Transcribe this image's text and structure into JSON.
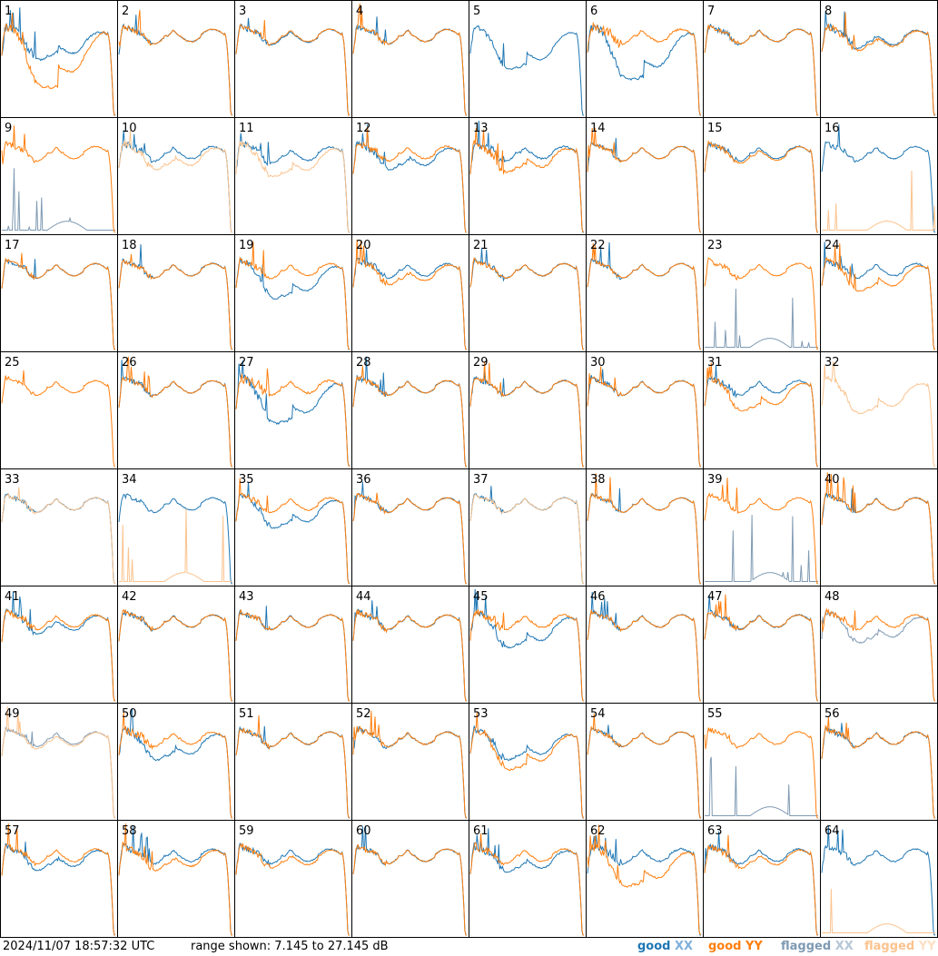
{
  "chart_data": {
    "type": "line",
    "grid": {
      "rows": 8,
      "cols": 8
    },
    "x_domain": [
      0,
      1
    ],
    "y_range_db": [
      7.145,
      27.145
    ],
    "colors": {
      "good_xx": "#1f77b4",
      "good_yy": "#ff7f0e",
      "flagged_xx": "#7f9ab3",
      "flagged_yy": "#fcc38e"
    },
    "panels": [
      {
        "label": "1",
        "xx": "good",
        "yy": "good",
        "xx_dip": 0.35,
        "yy_dip": 0.9,
        "xx_mid": 0.0,
        "yy_mid": 0.0,
        "noise": 0.9
      },
      {
        "label": "2",
        "xx": "good",
        "yy": "good",
        "xx_dip": 0.0,
        "yy_dip": 0.0,
        "xx_mid": 0.0,
        "yy_mid": 0.0,
        "noise": 0.5
      },
      {
        "label": "3",
        "xx": "good",
        "yy": "good",
        "xx_dip": 0.02,
        "yy_dip": 0.0,
        "xx_mid": 0.0,
        "yy_mid": 0.0,
        "noise": 0.5
      },
      {
        "label": "4",
        "xx": "good",
        "yy": "good",
        "xx_dip": 0.0,
        "yy_dip": 0.0,
        "xx_mid": 0.0,
        "yy_mid": 0.0,
        "noise": 0.5
      },
      {
        "label": "5",
        "xx": "good",
        "yy": "missing",
        "xx_dip": 0.55,
        "yy_dip": 0.0,
        "xx_mid": 0.0,
        "yy_mid": 0.0,
        "noise": 0.5
      },
      {
        "label": "6",
        "xx": "good",
        "yy": "good",
        "xx_dip": 0.75,
        "yy_dip": 0.0,
        "xx_mid": 0.4,
        "yy_mid": 0.0,
        "noise": 0.9
      },
      {
        "label": "7",
        "xx": "good",
        "yy": "good",
        "xx_dip": 0.0,
        "yy_dip": 0.0,
        "xx_mid": 0.0,
        "yy_mid": 0.0,
        "noise": 0.5
      },
      {
        "label": "8",
        "xx": "good",
        "yy": "good",
        "xx_dip": 0.1,
        "yy_dip": 0.15,
        "xx_mid": 0.0,
        "yy_mid": 0.0,
        "noise": 0.8
      },
      {
        "label": "9",
        "xx": "flagged_low",
        "yy": "good",
        "xx_dip": 0.0,
        "yy_dip": 0.0,
        "xx_mid": 0.0,
        "yy_mid": 0.0,
        "noise": 0.5
      },
      {
        "label": "10",
        "xx": "good",
        "yy": "flagged",
        "xx_dip": 0.0,
        "yy_dip": 0.2,
        "xx_mid": 0.0,
        "yy_mid": 0.0,
        "noise": 0.7
      },
      {
        "label": "11",
        "xx": "good",
        "yy": "flagged",
        "xx_dip": 0.05,
        "yy_dip": 0.35,
        "xx_mid": 0.0,
        "yy_mid": 0.0,
        "noise": 0.7
      },
      {
        "label": "12",
        "xx": "good",
        "yy": "good",
        "xx_dip": 0.2,
        "yy_dip": 0.0,
        "xx_mid": 0.0,
        "yy_mid": 0.0,
        "noise": 0.7
      },
      {
        "label": "13",
        "xx": "good",
        "yy": "good",
        "xx_dip": 0.0,
        "yy_dip": 0.25,
        "xx_mid": 0.0,
        "yy_mid": 0.0,
        "noise": 0.9
      },
      {
        "label": "14",
        "xx": "good",
        "yy": "good",
        "xx_dip": 0.0,
        "yy_dip": 0.0,
        "xx_mid": 0.0,
        "yy_mid": 0.0,
        "noise": 0.4
      },
      {
        "label": "15",
        "xx": "good",
        "yy": "good",
        "xx_dip": 0.0,
        "yy_dip": 0.05,
        "xx_mid": 0.0,
        "yy_mid": 0.0,
        "noise": 0.5
      },
      {
        "label": "16",
        "xx": "good",
        "yy": "flagged_low",
        "xx_dip": 0.0,
        "yy_dip": 0.0,
        "xx_mid": 0.0,
        "yy_mid": 0.0,
        "noise": 0.5
      },
      {
        "label": "17",
        "xx": "good",
        "yy": "good",
        "xx_dip": 0.0,
        "yy_dip": 0.0,
        "xx_mid": 0.0,
        "yy_mid": 0.0,
        "noise": 0.4
      },
      {
        "label": "18",
        "xx": "good",
        "yy": "good",
        "xx_dip": 0.0,
        "yy_dip": 0.0,
        "xx_mid": 0.0,
        "yy_mid": 0.0,
        "noise": 0.5
      },
      {
        "label": "19",
        "xx": "good",
        "yy": "good",
        "xx_dip": 0.45,
        "yy_dip": 0.0,
        "xx_mid": 0.0,
        "yy_mid": 0.0,
        "noise": 0.6
      },
      {
        "label": "20",
        "xx": "good",
        "yy": "good",
        "xx_dip": 0.0,
        "yy_dip": 0.15,
        "xx_mid": 0.0,
        "yy_mid": 0.0,
        "noise": 0.7
      },
      {
        "label": "21",
        "xx": "good",
        "yy": "good",
        "xx_dip": 0.0,
        "yy_dip": 0.0,
        "xx_mid": 0.0,
        "yy_mid": 0.0,
        "noise": 0.5
      },
      {
        "label": "22",
        "xx": "good",
        "yy": "good",
        "xx_dip": 0.0,
        "yy_dip": 0.0,
        "xx_mid": 0.0,
        "yy_mid": 0.0,
        "noise": 0.4
      },
      {
        "label": "23",
        "xx": "flagged_low",
        "yy": "good",
        "xx_dip": 0.0,
        "yy_dip": 0.0,
        "xx_mid": 0.0,
        "yy_mid": 0.0,
        "noise": 0.5
      },
      {
        "label": "24",
        "xx": "good",
        "yy": "good",
        "xx_dip": 0.0,
        "yy_dip": 0.3,
        "xx_mid": 0.0,
        "yy_mid": 0.0,
        "noise": 0.6
      },
      {
        "label": "25",
        "xx": "missing",
        "yy": "good",
        "xx_dip": 0.0,
        "yy_dip": 0.0,
        "xx_mid": 0.0,
        "yy_mid": 0.0,
        "noise": 0.4
      },
      {
        "label": "26",
        "xx": "good",
        "yy": "good",
        "xx_dip": 0.0,
        "yy_dip": 0.0,
        "xx_mid": 0.0,
        "yy_mid": 0.0,
        "noise": 0.5
      },
      {
        "label": "27",
        "xx": "good",
        "yy": "good",
        "xx_dip": 0.6,
        "yy_dip": 0.0,
        "xx_mid": 0.0,
        "yy_mid": 0.0,
        "noise": 1.0
      },
      {
        "label": "28",
        "xx": "good",
        "yy": "good",
        "xx_dip": 0.0,
        "yy_dip": 0.0,
        "xx_mid": 0.0,
        "yy_mid": 0.0,
        "noise": 0.5
      },
      {
        "label": "29",
        "xx": "good",
        "yy": "good",
        "xx_dip": 0.0,
        "yy_dip": 0.0,
        "xx_mid": 0.0,
        "yy_mid": 0.0,
        "noise": 0.5
      },
      {
        "label": "30",
        "xx": "good",
        "yy": "good",
        "xx_dip": 0.0,
        "yy_dip": 0.0,
        "xx_mid": 0.0,
        "yy_mid": 0.0,
        "noise": 0.5
      },
      {
        "label": "31",
        "xx": "good",
        "yy": "good",
        "xx_dip": 0.0,
        "yy_dip": 0.35,
        "xx_mid": 0.0,
        "yy_mid": 0.0,
        "noise": 0.6
      },
      {
        "label": "32",
        "xx": "missing",
        "yy": "flagged",
        "xx_dip": 0.0,
        "yy_dip": 0.4,
        "xx_mid": 0.0,
        "yy_mid": 0.0,
        "noise": 0.6
      },
      {
        "label": "33",
        "xx": "good",
        "yy": "flagged",
        "xx_dip": 0.0,
        "yy_dip": 0.0,
        "xx_mid": 0.0,
        "yy_mid": 0.0,
        "noise": 0.4
      },
      {
        "label": "34",
        "xx": "good",
        "yy": "flagged_low",
        "xx_dip": 0.0,
        "yy_dip": 0.0,
        "xx_mid": 0.0,
        "yy_mid": 0.0,
        "noise": 0.5
      },
      {
        "label": "35",
        "xx": "good",
        "yy": "good",
        "xx_dip": 0.35,
        "yy_dip": 0.0,
        "xx_mid": 0.0,
        "yy_mid": 0.0,
        "noise": 0.6
      },
      {
        "label": "36",
        "xx": "good",
        "yy": "good",
        "xx_dip": 0.0,
        "yy_dip": 0.0,
        "xx_mid": 0.0,
        "yy_mid": 0.0,
        "noise": 0.5
      },
      {
        "label": "37",
        "xx": "good",
        "yy": "flagged",
        "xx_dip": 0.0,
        "yy_dip": 0.0,
        "xx_mid": 0.0,
        "yy_mid": 0.0,
        "noise": 0.4
      },
      {
        "label": "38",
        "xx": "good",
        "yy": "good",
        "xx_dip": 0.0,
        "yy_dip": 0.0,
        "xx_mid": 0.0,
        "yy_mid": 0.0,
        "noise": 0.4
      },
      {
        "label": "39",
        "xx": "flagged_low",
        "yy": "good",
        "xx_dip": 0.0,
        "yy_dip": 0.0,
        "xx_mid": 0.0,
        "yy_mid": 0.0,
        "noise": 0.4
      },
      {
        "label": "40",
        "xx": "good",
        "yy": "good",
        "xx_dip": 0.0,
        "yy_dip": 0.0,
        "xx_mid": 0.0,
        "yy_mid": 0.0,
        "noise": 0.5
      },
      {
        "label": "41",
        "xx": "good",
        "yy": "good",
        "xx_dip": 0.1,
        "yy_dip": 0.0,
        "xx_mid": 0.0,
        "yy_mid": 0.0,
        "noise": 0.6
      },
      {
        "label": "42",
        "xx": "good",
        "yy": "good",
        "xx_dip": 0.0,
        "yy_dip": 0.0,
        "xx_mid": 0.0,
        "yy_mid": 0.0,
        "noise": 0.5
      },
      {
        "label": "43",
        "xx": "good",
        "yy": "good",
        "xx_dip": 0.0,
        "yy_dip": 0.0,
        "xx_mid": 0.0,
        "yy_mid": 0.0,
        "noise": 0.5
      },
      {
        "label": "44",
        "xx": "good",
        "yy": "good",
        "xx_dip": 0.0,
        "yy_dip": 0.0,
        "xx_mid": 0.0,
        "yy_mid": 0.0,
        "noise": 0.6
      },
      {
        "label": "45",
        "xx": "good",
        "yy": "good",
        "xx_dip": 0.4,
        "yy_dip": 0.0,
        "xx_mid": 0.0,
        "yy_mid": 0.0,
        "noise": 0.8
      },
      {
        "label": "46",
        "xx": "good",
        "yy": "good",
        "xx_dip": 0.0,
        "yy_dip": 0.0,
        "xx_mid": 0.0,
        "yy_mid": 0.0,
        "noise": 0.5
      },
      {
        "label": "47",
        "xx": "good",
        "yy": "good",
        "xx_dip": 0.0,
        "yy_dip": 0.0,
        "xx_mid": 0.0,
        "yy_mid": 0.0,
        "noise": 0.6
      },
      {
        "label": "48",
        "xx": "flagged",
        "yy": "good",
        "xx_dip": 0.3,
        "yy_dip": 0.0,
        "xx_mid": 0.0,
        "yy_mid": 0.0,
        "noise": 0.6
      },
      {
        "label": "49",
        "xx": "flagged",
        "yy": "flagged",
        "xx_dip": 0.0,
        "yy_dip": 0.05,
        "xx_mid": 0.0,
        "yy_mid": 0.0,
        "noise": 0.4
      },
      {
        "label": "50",
        "xx": "good",
        "yy": "good",
        "xx_dip": 0.3,
        "yy_dip": 0.0,
        "xx_mid": 0.0,
        "yy_mid": 0.0,
        "noise": 0.7
      },
      {
        "label": "51",
        "xx": "good",
        "yy": "good",
        "xx_dip": 0.0,
        "yy_dip": 0.0,
        "xx_mid": 0.0,
        "yy_mid": 0.0,
        "noise": 0.5
      },
      {
        "label": "52",
        "xx": "good",
        "yy": "good",
        "xx_dip": 0.0,
        "yy_dip": 0.0,
        "xx_mid": 0.0,
        "yy_mid": 0.0,
        "noise": 0.6
      },
      {
        "label": "53",
        "xx": "good",
        "yy": "good",
        "xx_dip": 0.3,
        "yy_dip": 0.5,
        "xx_mid": 0.0,
        "yy_mid": 0.0,
        "noise": 0.8
      },
      {
        "label": "54",
        "xx": "good",
        "yy": "good",
        "xx_dip": 0.0,
        "yy_dip": 0.0,
        "xx_mid": 0.0,
        "yy_mid": 0.0,
        "noise": 0.4
      },
      {
        "label": "55",
        "xx": "flagged_low",
        "yy": "good",
        "xx_dip": 0.0,
        "yy_dip": 0.0,
        "xx_mid": 0.0,
        "yy_mid": 0.0,
        "noise": 0.5
      },
      {
        "label": "56",
        "xx": "good",
        "yy": "good",
        "xx_dip": 0.0,
        "yy_dip": 0.0,
        "xx_mid": 0.0,
        "yy_mid": 0.0,
        "noise": 0.6
      },
      {
        "label": "57",
        "xx": "good",
        "yy": "good",
        "xx_dip": 0.15,
        "yy_dip": 0.0,
        "xx_mid": 0.0,
        "yy_mid": 0.0,
        "noise": 0.6
      },
      {
        "label": "58",
        "xx": "good",
        "yy": "good",
        "xx_dip": 0.0,
        "yy_dip": 0.15,
        "xx_mid": 0.0,
        "yy_mid": 0.0,
        "noise": 0.7
      },
      {
        "label": "59",
        "xx": "good",
        "yy": "good",
        "xx_dip": 0.0,
        "yy_dip": 0.1,
        "xx_mid": 0.0,
        "yy_mid": 0.0,
        "noise": 0.6
      },
      {
        "label": "60",
        "xx": "good",
        "yy": "good",
        "xx_dip": 0.0,
        "yy_dip": 0.0,
        "xx_mid": 0.0,
        "yy_mid": 0.0,
        "noise": 0.5
      },
      {
        "label": "61",
        "xx": "good",
        "yy": "good",
        "xx_dip": 0.2,
        "yy_dip": 0.0,
        "xx_mid": 0.0,
        "yy_mid": 0.0,
        "noise": 0.8
      },
      {
        "label": "62",
        "xx": "good",
        "yy": "good",
        "xx_dip": 0.0,
        "yy_dip": 0.5,
        "xx_mid": 0.0,
        "yy_mid": 0.0,
        "noise": 0.9
      },
      {
        "label": "63",
        "xx": "good",
        "yy": "good",
        "xx_dip": 0.0,
        "yy_dip": 0.1,
        "xx_mid": 0.0,
        "yy_mid": 0.0,
        "noise": 0.6
      },
      {
        "label": "64",
        "xx": "good",
        "yy": "flagged_low",
        "xx_dip": 0.0,
        "yy_dip": 0.0,
        "xx_mid": 0.0,
        "yy_mid": 0.0,
        "noise": 0.5
      }
    ]
  },
  "footer": {
    "timestamp": "2024/11/07 18:57:32 UTC",
    "range_text": "range shown: 7.145 to 27.145 dB"
  },
  "legend": {
    "good_xx_word": "good",
    "good_xx_pol": "XX",
    "good_yy": "good YY",
    "flagged_xx_word": "flagged",
    "flagged_xx_pol": "XX",
    "flagged_yy_word": "flagged",
    "flagged_yy_pol": "YY"
  }
}
